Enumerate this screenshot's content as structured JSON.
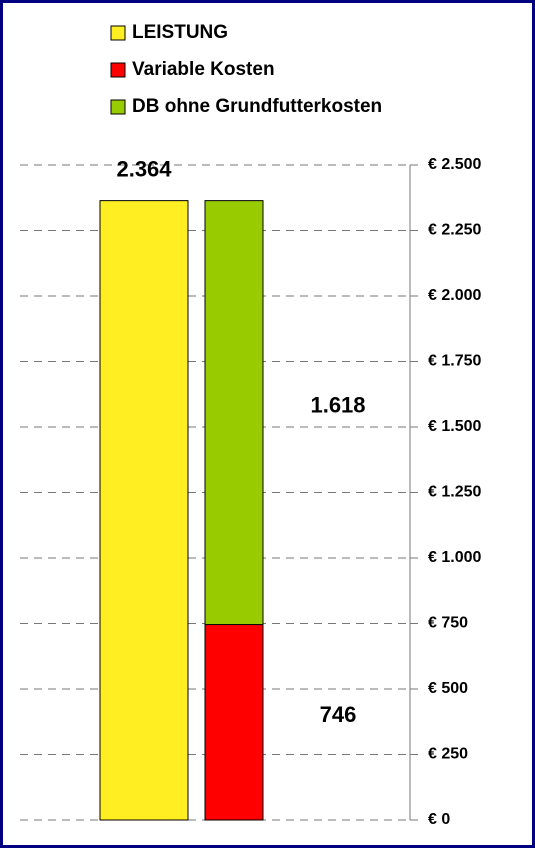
{
  "chart_data": {
    "type": "stacked-bar",
    "categories": [
      null,
      null
    ],
    "series": [
      {
        "name": "LEISTUNG",
        "color": "#ffee22",
        "values": [
          2364,
          null
        ],
        "value_labels": [
          "2.364",
          null
        ]
      },
      {
        "name": "Variable Kosten",
        "color": "#ff0000",
        "values": [
          null,
          746
        ],
        "value_labels": [
          null,
          "746"
        ]
      },
      {
        "name": "DB ohne Grundfutterkosten",
        "color": "#99cc00",
        "values": [
          null,
          1618
        ],
        "value_labels": [
          null,
          "1.618"
        ]
      }
    ],
    "ylim": [
      0,
      2500
    ],
    "yticks": [
      {
        "value": 0,
        "label": "€ 0"
      },
      {
        "value": 250,
        "label": "€ 250"
      },
      {
        "value": 500,
        "label": "€ 500"
      },
      {
        "value": 750,
        "label": "€ 750"
      },
      {
        "value": 1000,
        "label": "€ 1.000"
      },
      {
        "value": 1250,
        "label": "€ 1.250"
      },
      {
        "value": 1500,
        "label": "€ 1.500"
      },
      {
        "value": 1750,
        "label": "€ 1.750"
      },
      {
        "value": 2000,
        "label": "€ 2.000"
      },
      {
        "value": 2250,
        "label": "€ 2.250"
      },
      {
        "value": 2500,
        "label": "€ 2.500"
      }
    ],
    "grid": true,
    "legend": "top-left"
  }
}
